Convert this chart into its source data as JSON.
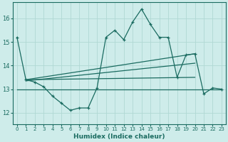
{
  "xlabel": "Humidex (Indice chaleur)",
  "bg_color": "#ceecea",
  "grid_color": "#b0d8d4",
  "line_color": "#1a6b60",
  "xlim": [
    -0.5,
    23.5
  ],
  "ylim": [
    11.5,
    16.7
  ],
  "yticks": [
    12,
    13,
    14,
    15,
    16
  ],
  "xticks": [
    0,
    1,
    2,
    3,
    4,
    5,
    6,
    7,
    8,
    9,
    10,
    11,
    12,
    13,
    14,
    15,
    16,
    17,
    18,
    19,
    20,
    21,
    22,
    23
  ],
  "main_x": [
    0,
    1,
    2,
    3,
    4,
    5,
    6,
    7,
    8,
    9,
    10,
    11,
    12,
    13,
    14,
    15,
    16,
    17,
    18,
    19,
    20,
    21,
    22,
    23
  ],
  "main_y": [
    15.2,
    13.4,
    13.3,
    13.1,
    12.7,
    12.4,
    12.1,
    12.2,
    12.2,
    13.05,
    15.2,
    15.5,
    15.1,
    15.85,
    16.4,
    15.75,
    15.2,
    15.2,
    13.5,
    14.45,
    14.5,
    12.8,
    13.05,
    13.0
  ],
  "flat_line_x": [
    0,
    23
  ],
  "flat_line_y": [
    13.0,
    13.0
  ],
  "trend1_x": [
    1,
    20
  ],
  "trend1_y": [
    13.4,
    14.5
  ],
  "trend2_x": [
    1,
    20
  ],
  "trend2_y": [
    13.4,
    13.5
  ],
  "trend3_x": [
    1,
    20
  ],
  "trend3_y": [
    13.35,
    14.1
  ]
}
